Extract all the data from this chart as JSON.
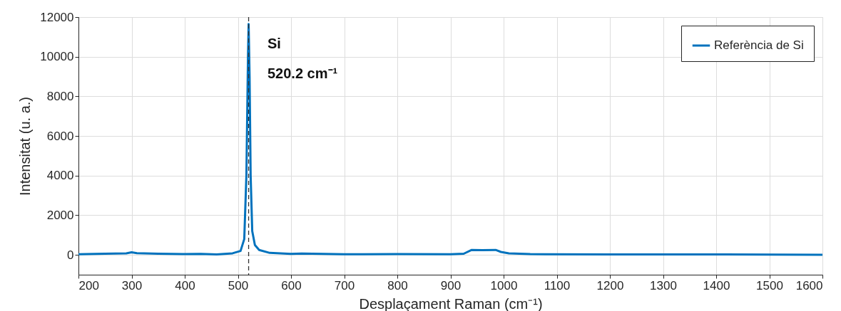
{
  "chart_data": {
    "type": "line",
    "xlabel": "Desplaçament Raman (cm⁻¹)",
    "ylabel": "Intensitat (u. a.)",
    "x": [
      200,
      250,
      290,
      300,
      310,
      350,
      400,
      430,
      460,
      490,
      505,
      512,
      516,
      519,
      520.2,
      522,
      524,
      527,
      532,
      540,
      560,
      600,
      620,
      700,
      800,
      900,
      925,
      940,
      960,
      985,
      995,
      1010,
      1050,
      1200,
      1400,
      1600
    ],
    "series": [
      {
        "name": "Referència de Si",
        "color": "#0072bd",
        "values": [
          30,
          60,
          80,
          130,
          90,
          60,
          40,
          50,
          20,
          80,
          200,
          800,
          4000,
          10000,
          11650,
          9000,
          4000,
          1200,
          500,
          250,
          100,
          50,
          70,
          30,
          40,
          30,
          60,
          250,
          240,
          250,
          150,
          80,
          40,
          20,
          20,
          10
        ]
      }
    ],
    "xlim": [
      200,
      1600
    ],
    "xticks": [
      200,
      300,
      400,
      500,
      600,
      700,
      800,
      900,
      1000,
      1100,
      1200,
      1300,
      1400,
      1500,
      1600
    ],
    "ylim": [
      -1000,
      12000
    ],
    "yticks": [
      0,
      2000,
      4000,
      6000,
      8000,
      10000,
      12000
    ],
    "ref_lines": [
      {
        "axis": "x",
        "value": 520.2,
        "color": "#333333",
        "line_style": "dashed"
      }
    ],
    "annotations": [
      "Si",
      "520.2 cm⁻¹"
    ],
    "grid": true,
    "legend": "top right",
    "line_style": "solid",
    "marker": "none"
  }
}
